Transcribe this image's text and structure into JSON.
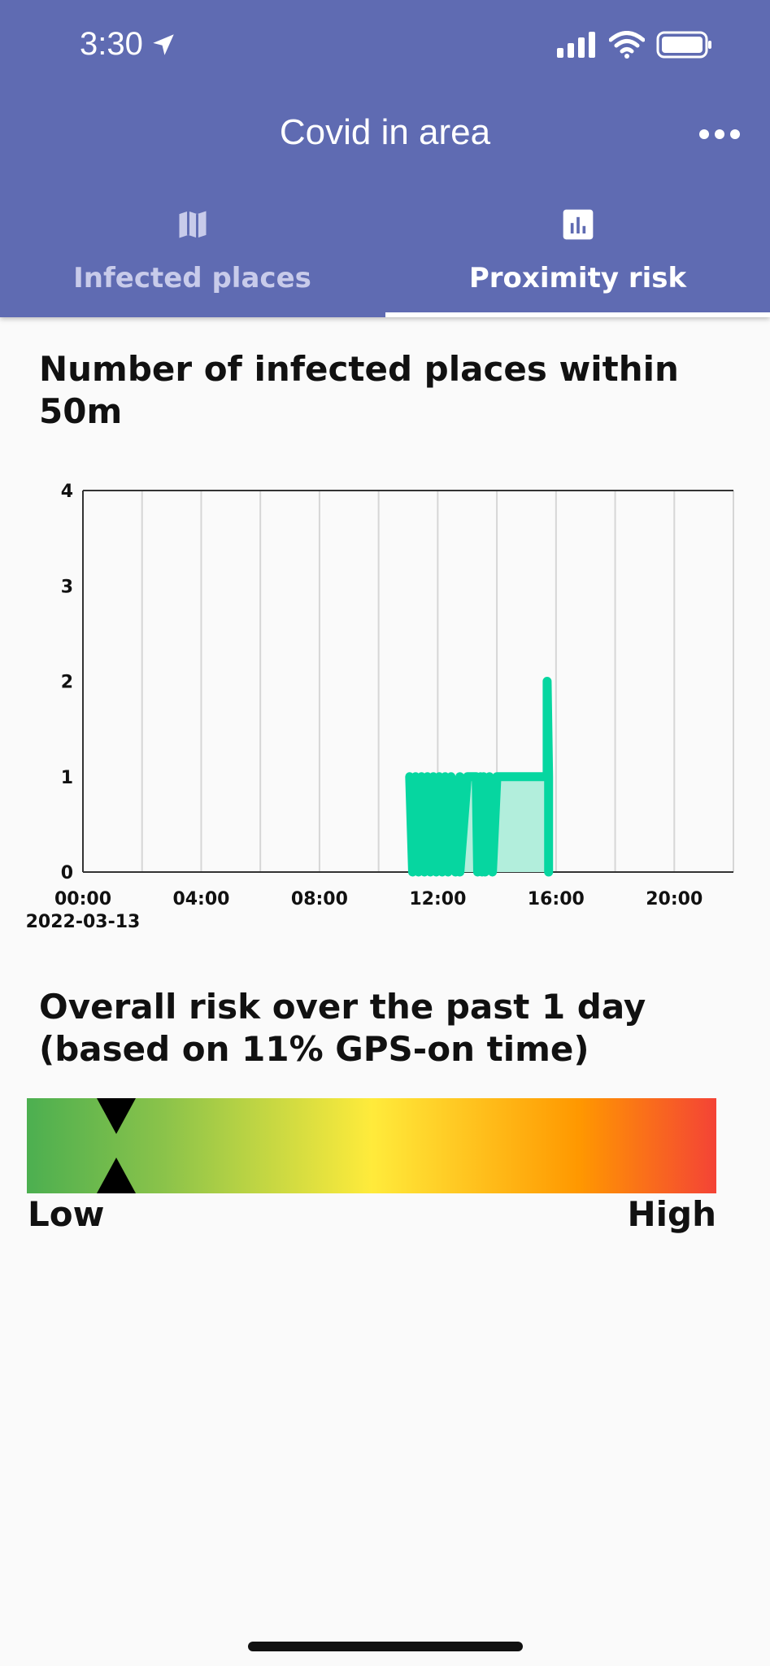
{
  "status_bar": {
    "time": "3:30",
    "icons": [
      "location-arrow-icon",
      "signal-icon",
      "wifi-icon",
      "battery-icon"
    ]
  },
  "header": {
    "title": "Covid in area",
    "more_icon": "more-horizontal-icon",
    "background": "#5f6bb2"
  },
  "tabs": [
    {
      "label": "Infected places",
      "icon": "map-icon",
      "active": false
    },
    {
      "label": "Proximity risk",
      "icon": "bar-chart-icon",
      "active": true
    }
  ],
  "proximity": {
    "title": "Number of infected places within 50m"
  },
  "chart_data": {
    "type": "line",
    "x_axis": {
      "min_hour": 0,
      "max_hour": 22,
      "ticks": [
        "00:00",
        "04:00",
        "08:00",
        "12:00",
        "16:00",
        "20:00"
      ],
      "tick_hours": [
        0,
        4,
        8,
        12,
        16,
        20
      ],
      "date_label": "2022-03-13"
    },
    "y_axis": {
      "min": 0,
      "max": 4,
      "ticks": [
        "0",
        "1",
        "2",
        "3",
        "4"
      ]
    },
    "grid": "vertical",
    "color": "#06d6a0",
    "fill_color": "#b2eedc",
    "series": [
      {
        "x": [
          11.05,
          11.15,
          11.25,
          11.35,
          11.45,
          11.55,
          11.65,
          11.75,
          11.85,
          11.95,
          12.05,
          12.15,
          12.25,
          12.35,
          12.45,
          12.6,
          12.75,
          12.75,
          13.0,
          13.3,
          13.35,
          13.45,
          13.5,
          13.55,
          13.6,
          13.75,
          13.85,
          14.0,
          14.5,
          15.0,
          15.5,
          15.7,
          15.7,
          15.75,
          15.75
        ],
        "y": [
          1,
          0,
          1,
          0,
          1,
          0,
          1,
          0,
          1,
          0,
          1,
          0,
          1,
          0,
          1,
          0,
          1,
          0,
          1,
          1,
          0,
          1,
          0,
          1,
          0,
          1,
          0,
          1,
          1,
          1,
          1,
          1,
          2,
          1,
          0
        ]
      }
    ]
  },
  "overall_risk": {
    "title": "Overall risk over the past 1 day (based on 11% GPS-on time)",
    "level": 0.13,
    "low_label": "Low",
    "high_label": "High",
    "marker_color": "#000000"
  }
}
